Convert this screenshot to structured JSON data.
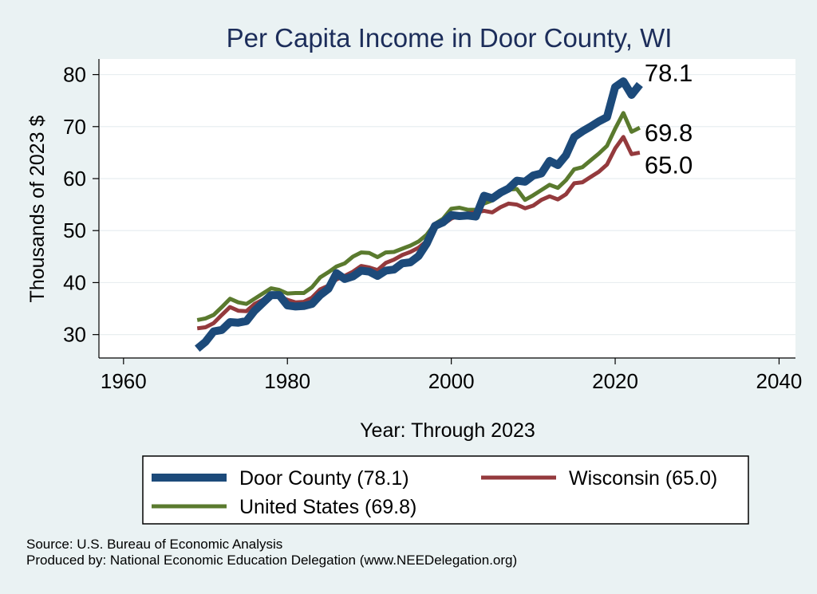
{
  "chart_data": {
    "type": "line",
    "title": "Per Capita Income in Door County, WI",
    "xlabel": "Year: Through 2023",
    "ylabel": "Thousands of 2023 $",
    "xlim": [
      1957,
      2042
    ],
    "ylim": [
      25.5,
      83
    ],
    "xticks": [
      1960,
      1980,
      2000,
      2020,
      2040
    ],
    "yticks": [
      30,
      40,
      50,
      60,
      70,
      80
    ],
    "grid": true,
    "legend_position": "bottom",
    "series": [
      {
        "name": "Door County (78.1)",
        "end_label": "78.1",
        "color": "#1c4a7a",
        "x": [
          1969,
          1970,
          1971,
          1972,
          1973,
          1974,
          1975,
          1976,
          1977,
          1978,
          1979,
          1980,
          1981,
          1982,
          1983,
          1984,
          1985,
          1986,
          1987,
          1988,
          1989,
          1990,
          1991,
          1992,
          1993,
          1994,
          1995,
          1996,
          1997,
          1998,
          1999,
          2000,
          2001,
          2002,
          2003,
          2004,
          2005,
          2006,
          2007,
          2008,
          2009,
          2010,
          2011,
          2012,
          2013,
          2014,
          2015,
          2016,
          2017,
          2018,
          2019,
          2020,
          2021,
          2022,
          2023
        ],
        "y": [
          27.3,
          28.6,
          30.6,
          30.9,
          32.4,
          32.3,
          32.6,
          34.6,
          36.1,
          37.6,
          37.6,
          35.6,
          35.4,
          35.5,
          35.9,
          37.6,
          38.8,
          41.8,
          40.7,
          41.2,
          42.3,
          42.1,
          41.3,
          42.3,
          42.5,
          43.7,
          43.9,
          45.1,
          47.5,
          50.9,
          51.6,
          53.0,
          52.8,
          52.9,
          52.7,
          56.7,
          56.2,
          57.3,
          58.1,
          59.6,
          59.4,
          60.6,
          61.0,
          63.4,
          62.6,
          64.5,
          68.0,
          69.1,
          70.0,
          71.0,
          71.8,
          77.6,
          78.7,
          76.1,
          78.1
        ]
      },
      {
        "name": "Wisconsin (65.0)",
        "end_label": "65.0",
        "color": "#943a3d",
        "x": [
          1969,
          1970,
          1971,
          1972,
          1973,
          1974,
          1975,
          1976,
          1977,
          1978,
          1979,
          1980,
          1981,
          1982,
          1983,
          1984,
          1985,
          1986,
          1987,
          1988,
          1989,
          1990,
          1991,
          1992,
          1993,
          1994,
          1995,
          1996,
          1997,
          1998,
          1999,
          2000,
          2001,
          2002,
          2003,
          2004,
          2005,
          2006,
          2007,
          2008,
          2009,
          2010,
          2011,
          2012,
          2013,
          2014,
          2015,
          2016,
          2017,
          2018,
          2019,
          2020,
          2021,
          2022,
          2023
        ],
        "y": [
          31.2,
          31.4,
          32.2,
          33.8,
          35.3,
          34.6,
          34.5,
          35.9,
          36.7,
          37.9,
          37.4,
          36.7,
          36.2,
          36.3,
          37.1,
          38.7,
          39.4,
          40.6,
          41.3,
          42.1,
          43.2,
          42.9,
          42.4,
          43.8,
          44.4,
          45.3,
          45.9,
          46.7,
          48.0,
          50.9,
          51.2,
          52.3,
          52.9,
          53.3,
          53.5,
          53.8,
          53.5,
          54.5,
          55.2,
          55.0,
          54.3,
          54.8,
          55.9,
          56.6,
          56.0,
          57.0,
          59.1,
          59.3,
          60.3,
          61.3,
          62.7,
          65.8,
          68.0,
          64.7,
          65.0
        ]
      },
      {
        "name": "United States (69.8)",
        "end_label": "69.8",
        "color": "#5a7a2e",
        "x": [
          1969,
          1970,
          1971,
          1972,
          1973,
          1974,
          1975,
          1976,
          1977,
          1978,
          1979,
          1980,
          1981,
          1982,
          1983,
          1984,
          1985,
          1986,
          1987,
          1988,
          1989,
          1990,
          1991,
          1992,
          1993,
          1994,
          1995,
          1996,
          1997,
          1998,
          1999,
          2000,
          2001,
          2002,
          2003,
          2004,
          2005,
          2006,
          2007,
          2008,
          2009,
          2010,
          2011,
          2012,
          2013,
          2014,
          2015,
          2016,
          2017,
          2018,
          2019,
          2020,
          2021,
          2022,
          2023
        ],
        "y": [
          32.8,
          33.1,
          33.8,
          35.3,
          36.9,
          36.2,
          35.9,
          36.9,
          37.9,
          38.9,
          38.6,
          37.9,
          38.0,
          38.0,
          39.1,
          41.0,
          42.0,
          43.1,
          43.7,
          45.0,
          45.8,
          45.7,
          44.9,
          45.8,
          45.9,
          46.5,
          47.1,
          47.9,
          49.2,
          51.3,
          52.3,
          54.2,
          54.4,
          54.0,
          54.0,
          55.2,
          55.8,
          57.0,
          57.9,
          58.0,
          55.9,
          56.8,
          57.8,
          58.8,
          58.2,
          59.7,
          61.8,
          62.2,
          63.5,
          64.8,
          66.3,
          69.6,
          72.6,
          69.0,
          69.8
        ]
      }
    ]
  },
  "source_line": "Source: U.S. Bureau of Economic Analysis",
  "produced_line": "Produced by: National Economic Education Delegation (www.NEEDelegation.org)"
}
